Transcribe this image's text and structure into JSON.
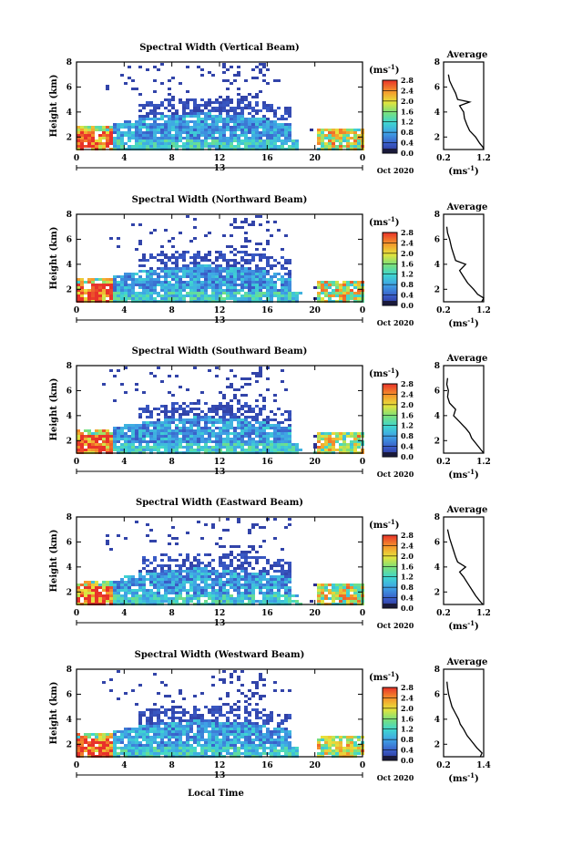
{
  "chart_data": [
    {
      "type": "heatmap",
      "title": "Spectral Width (Vertical Beam)",
      "ylabel": "Height (km)",
      "xlim": [
        0,
        24
      ],
      "ylim": [
        1,
        8
      ],
      "x_ticks": [
        "0",
        "4",
        "8",
        "12",
        "16",
        "20",
        "0"
      ],
      "y_ticks": [
        "2",
        "4",
        "6",
        "8"
      ],
      "date_marker": "13",
      "date_label": "Oct 2020",
      "colorbar": {
        "unit": "(ms",
        "unit_exp": "-1",
        "unit_close": ")",
        "ticks": [
          "0.0",
          "0.4",
          "0.8",
          "1.2",
          "1.6",
          "2.0",
          "2.4",
          "2.8"
        ],
        "range": [
          0,
          2.8
        ]
      },
      "average": {
        "title": "Average",
        "unit": "(ms",
        "unit_exp": "-1",
        "unit_close": ")",
        "xlim": [
          0.2,
          1.2
        ],
        "x_ticks": [
          "0.2",
          "1.2"
        ],
        "y_ticks": [
          "2",
          "4",
          "6",
          "8"
        ],
        "profile": [
          [
            1.0,
            1.2
          ],
          [
            1.2,
            1.18
          ],
          [
            1.5,
            1.1
          ],
          [
            2.0,
            1.0
          ],
          [
            2.5,
            0.85
          ],
          [
            3.0,
            0.78
          ],
          [
            3.5,
            0.72
          ],
          [
            4.0,
            0.7
          ],
          [
            4.5,
            0.6
          ],
          [
            4.8,
            0.85
          ],
          [
            5.0,
            0.55
          ],
          [
            5.5,
            0.5
          ],
          [
            6.0,
            0.42
          ],
          [
            6.5,
            0.35
          ],
          [
            7.0,
            0.32
          ]
        ]
      }
    },
    {
      "type": "heatmap",
      "title": "Spectral Width (Northward Beam)",
      "ylabel": "Height (km)",
      "xlim": [
        0,
        24
      ],
      "ylim": [
        1,
        8
      ],
      "x_ticks": [
        "0",
        "4",
        "8",
        "12",
        "16",
        "20",
        "0"
      ],
      "y_ticks": [
        "2",
        "4",
        "6",
        "8"
      ],
      "date_marker": "13",
      "date_label": "Oct 2020",
      "colorbar": {
        "unit": "(ms",
        "unit_exp": "-1",
        "unit_close": ")",
        "ticks": [
          "0.0",
          "0.4",
          "0.8",
          "1.2",
          "1.6",
          "2.0",
          "2.4",
          "2.8"
        ],
        "range": [
          0,
          2.8
        ]
      },
      "average": {
        "title": "Average",
        "unit": "(ms",
        "unit_exp": "-1",
        "unit_close": ")",
        "xlim": [
          0.2,
          1.2
        ],
        "x_ticks": [
          "0.2",
          "1.2"
        ],
        "y_ticks": [
          "2",
          "4",
          "6",
          "8"
        ],
        "profile": [
          [
            1.0,
            1.15
          ],
          [
            1.3,
            1.2
          ],
          [
            1.6,
            1.05
          ],
          [
            2.0,
            0.95
          ],
          [
            2.5,
            0.8
          ],
          [
            3.0,
            0.7
          ],
          [
            3.5,
            0.6
          ],
          [
            4.0,
            0.75
          ],
          [
            4.3,
            0.5
          ],
          [
            4.8,
            0.45
          ],
          [
            5.3,
            0.4
          ],
          [
            6.0,
            0.35
          ],
          [
            6.5,
            0.3
          ],
          [
            7.0,
            0.28
          ]
        ]
      }
    },
    {
      "type": "heatmap",
      "title": "Spectral Width (Southward Beam)",
      "ylabel": "Height (km)",
      "xlim": [
        0,
        24
      ],
      "ylim": [
        1,
        8
      ],
      "x_ticks": [
        "0",
        "4",
        "8",
        "12",
        "16",
        "20",
        "0"
      ],
      "y_ticks": [
        "2",
        "4",
        "6",
        "8"
      ],
      "date_marker": "13",
      "date_label": "Oct 2020",
      "colorbar": {
        "unit": "(ms",
        "unit_exp": "-1",
        "unit_close": ")",
        "ticks": [
          "0.0",
          "0.4",
          "0.8",
          "1.2",
          "1.6",
          "2.0",
          "2.4",
          "2.8"
        ],
        "range": [
          0,
          2.8
        ]
      },
      "average": {
        "title": "Average",
        "unit": "(ms",
        "unit_exp": "-1",
        "unit_close": ")",
        "xlim": [
          0.2,
          1.2
        ],
        "x_ticks": [
          "0.2",
          "1.2"
        ],
        "y_ticks": [
          "2",
          "4",
          "6",
          "8"
        ],
        "profile": [
          [
            1.0,
            1.2
          ],
          [
            1.4,
            1.1
          ],
          [
            1.8,
            1.0
          ],
          [
            2.2,
            0.9
          ],
          [
            2.6,
            0.85
          ],
          [
            3.0,
            0.75
          ],
          [
            3.5,
            0.6
          ],
          [
            4.0,
            0.45
          ],
          [
            4.5,
            0.5
          ],
          [
            5.0,
            0.35
          ],
          [
            5.5,
            0.3
          ],
          [
            6.0,
            0.32
          ],
          [
            6.5,
            0.28
          ],
          [
            7.0,
            0.3
          ]
        ]
      }
    },
    {
      "type": "heatmap",
      "title": "Spectral Width (Eastward Beam)",
      "ylabel": "Height (km)",
      "xlim": [
        0,
        24
      ],
      "ylim": [
        1,
        8
      ],
      "x_ticks": [
        "0",
        "4",
        "8",
        "12",
        "16",
        "20",
        "0"
      ],
      "y_ticks": [
        "2",
        "4",
        "6",
        "8"
      ],
      "date_marker": "13",
      "date_label": "Oct 2020",
      "colorbar": {
        "unit": "(ms",
        "unit_exp": "-1",
        "unit_close": ")",
        "ticks": [
          "0.0",
          "0.4",
          "0.8",
          "1.2",
          "1.6",
          "2.0",
          "2.4",
          "2.8"
        ],
        "range": [
          0,
          2.8
        ]
      },
      "average": {
        "title": "Average",
        "unit": "(ms",
        "unit_exp": "-1",
        "unit_close": ")",
        "xlim": [
          0.2,
          1.2
        ],
        "x_ticks": [
          "0.2",
          "1.2"
        ],
        "y_ticks": [
          "2",
          "4",
          "6",
          "8"
        ],
        "profile": [
          [
            1.0,
            1.18
          ],
          [
            1.3,
            1.1
          ],
          [
            1.7,
            1.0
          ],
          [
            2.2,
            0.9
          ],
          [
            2.7,
            0.8
          ],
          [
            3.2,
            0.7
          ],
          [
            3.6,
            0.6
          ],
          [
            4.0,
            0.75
          ],
          [
            4.4,
            0.55
          ],
          [
            4.8,
            0.5
          ],
          [
            5.3,
            0.45
          ],
          [
            5.8,
            0.4
          ],
          [
            6.3,
            0.35
          ],
          [
            7.0,
            0.3
          ]
        ]
      }
    },
    {
      "type": "heatmap",
      "title": "Spectral Width (Westward Beam)",
      "ylabel": "Height (km)",
      "xlabel": "Local Time",
      "xlim": [
        0,
        24
      ],
      "ylim": [
        1,
        8
      ],
      "x_ticks": [
        "0",
        "4",
        "8",
        "12",
        "16",
        "20",
        "0"
      ],
      "y_ticks": [
        "2",
        "4",
        "6",
        "8"
      ],
      "date_marker": "13",
      "date_label": "Oct 2020",
      "colorbar": {
        "unit": "(ms",
        "unit_exp": "-1",
        "unit_close": ")",
        "ticks": [
          "0.0",
          "0.4",
          "0.8",
          "1.2",
          "1.6",
          "2.0",
          "2.4",
          "2.8"
        ],
        "range": [
          0,
          2.8
        ]
      },
      "average": {
        "title": "Average",
        "unit": "(ms",
        "unit_exp": "-1",
        "unit_close": ")",
        "xlim": [
          0.2,
          1.4
        ],
        "x_ticks": [
          "0.2",
          "1.4"
        ],
        "y_ticks": [
          "2",
          "4",
          "6",
          "8"
        ],
        "profile": [
          [
            1.0,
            1.3
          ],
          [
            1.3,
            1.35
          ],
          [
            1.7,
            1.2
          ],
          [
            2.2,
            1.05
          ],
          [
            2.7,
            0.9
          ],
          [
            3.2,
            0.8
          ],
          [
            3.6,
            0.7
          ],
          [
            4.0,
            0.65
          ],
          [
            4.5,
            0.55
          ],
          [
            5.0,
            0.45
          ],
          [
            5.5,
            0.4
          ],
          [
            6.0,
            0.35
          ],
          [
            6.5,
            0.32
          ],
          [
            7.0,
            0.3
          ]
        ]
      }
    }
  ]
}
